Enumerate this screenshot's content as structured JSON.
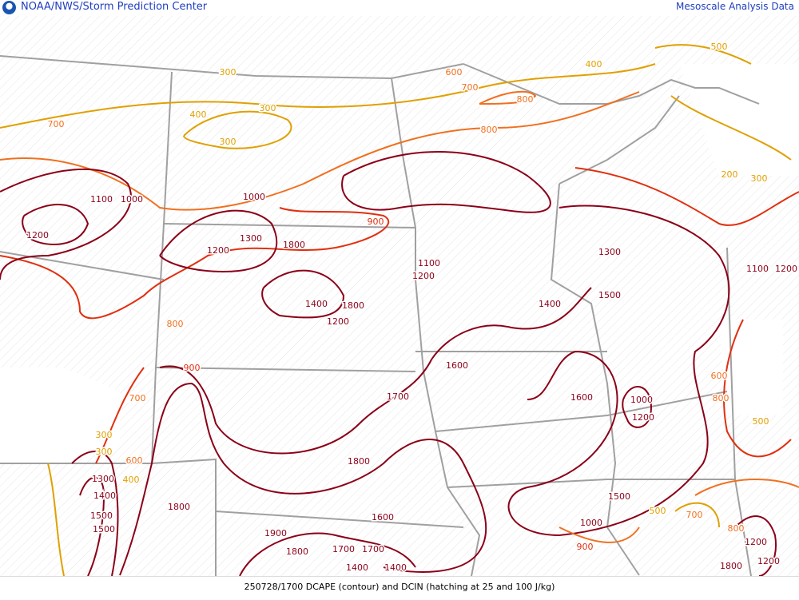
{
  "header": {
    "title": "NOAA/NWS/Storm Prediction Center",
    "right_title": "Mesoscale Analysis Data",
    "logo": "noaa-logo"
  },
  "footer": {
    "caption": "250728/1700 DCAPE (contour) and DCIN (hatching at 25 and 100 J/kg)"
  },
  "colors": {
    "low": "#e0a000",
    "mid": "#f07020",
    "high": "#e03010",
    "top": "#8b0018",
    "border": "#a0a0a0",
    "title": "#1f3fbf"
  },
  "contour_labels": [
    "300",
    "300",
    "400",
    "300",
    "700",
    "600",
    "700",
    "800",
    "400",
    "500",
    "800",
    "1100",
    "1000",
    "1200",
    "1000",
    "1300",
    "1800",
    "900",
    "1200",
    "1400",
    "1800",
    "1200",
    "800",
    "1100",
    "1200",
    "1300",
    "1400",
    "1500",
    "1100",
    "1200",
    "900",
    "1600",
    "1700",
    "1600",
    "1000",
    "1200",
    "700",
    "800",
    "600",
    "500",
    "1800",
    "1500",
    "1500",
    "1800",
    "1600",
    "1900",
    "1800",
    "1700",
    "1700",
    "1400",
    "1400",
    "1000",
    "900",
    "500",
    "700",
    "800",
    "1200",
    "1800",
    "1200",
    "1300",
    "1400",
    "300",
    "300",
    "1500",
    "200",
    "300",
    "400",
    "600"
  ]
}
